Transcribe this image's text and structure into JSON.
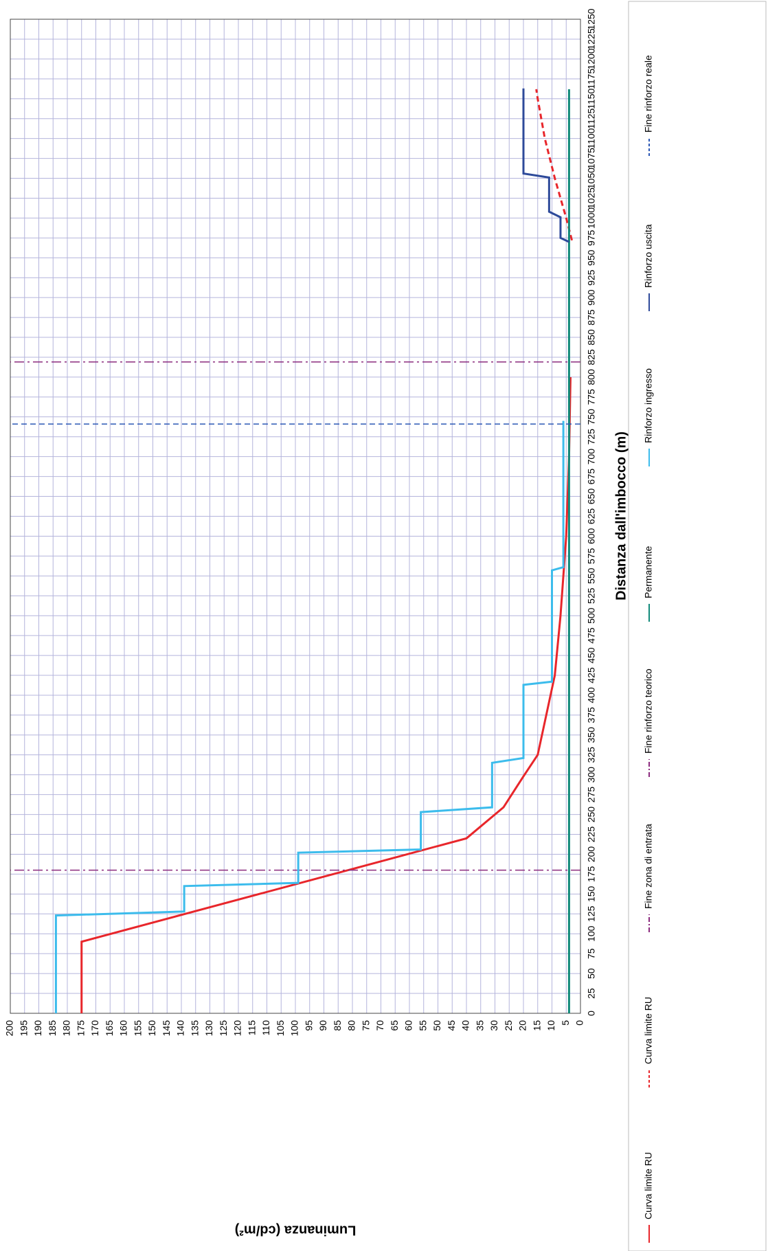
{
  "chart_data": {
    "type": "line",
    "xlabel": "Distanza dall'imbocco (m)",
    "ylabel": "Luminanza (cd/m²)",
    "xlim": [
      0,
      1250
    ],
    "xticks": [
      0,
      25,
      50,
      75,
      100,
      125,
      150,
      175,
      200,
      225,
      250,
      275,
      300,
      325,
      350,
      375,
      400,
      425,
      450,
      475,
      500,
      525,
      550,
      575,
      600,
      625,
      650,
      675,
      700,
      725,
      750,
      775,
      800,
      825,
      850,
      875,
      900,
      925,
      950,
      975,
      1000,
      1025,
      1050,
      1075,
      1100,
      1125,
      1150,
      1175,
      1200,
      1225,
      1250
    ],
    "ylim": [
      0,
      200
    ],
    "yticks": [
      0,
      5,
      10,
      15,
      20,
      25,
      30,
      35,
      40,
      45,
      50,
      55,
      60,
      65,
      70,
      75,
      80,
      85,
      90,
      95,
      100,
      105,
      110,
      115,
      120,
      125,
      130,
      135,
      140,
      145,
      150,
      155,
      160,
      165,
      170,
      175,
      180,
      185,
      190,
      195,
      200
    ],
    "grid": true,
    "legend": "bottom",
    "series": [
      {
        "name": "Curva limite RU",
        "color": "#e8262b",
        "line_style": "solid",
        "x": [
          0,
          90,
          220,
          259,
          298,
          325,
          375,
          425,
          500,
          600,
          700,
          800
        ],
        "values": [
          175,
          175,
          40,
          27,
          20,
          15,
          12,
          9,
          7,
          5,
          4,
          3.5
        ]
      },
      {
        "name": "Curva limite RU",
        "color": "#e8262b",
        "line_style": "dashed",
        "x": [
          972,
          1000,
          1050,
          1100,
          1150,
          1162
        ],
        "values": [
          3,
          5,
          9,
          12.5,
          15,
          15.5
        ]
      },
      {
        "name": "Fine zona di entrata",
        "color": "#8b2a7e",
        "line_style": "dashdot",
        "x": [
          180,
          180
        ],
        "values": [
          0,
          200
        ]
      },
      {
        "name": "Fine rinforzo teorico",
        "color": "#8b2a7e",
        "line_style": "dashdot",
        "x": [
          819,
          819
        ],
        "values": [
          0,
          200
        ]
      },
      {
        "name": "Permanente",
        "color": "#128a7a",
        "line_style": "solid",
        "x": [
          0,
          1162
        ],
        "values": [
          4,
          4
        ]
      },
      {
        "name": "Rinforzo ingresso",
        "color": "#3cbcec",
        "line_style": "solid",
        "x": [
          0,
          123,
          128,
          160,
          164,
          202,
          206,
          253,
          259,
          315,
          321,
          413,
          417,
          557,
          561,
          745
        ],
        "values": [
          184,
          184,
          139,
          139,
          99,
          99,
          56,
          56,
          31,
          31,
          20,
          20,
          10,
          10,
          6,
          6
        ]
      },
      {
        "name": "Rinforzo uscita",
        "color": "#2e4a9a",
        "line_style": "solid",
        "x": [
          970,
          975,
          1001,
          1008,
          1051,
          1056,
          1163
        ],
        "values": [
          4,
          7,
          7,
          11,
          11,
          20,
          20
        ]
      },
      {
        "name": "Fine rinforzo reale",
        "color": "#2b57b5",
        "line_style": "dashed",
        "x": [
          741,
          741
        ],
        "values": [
          0,
          200
        ]
      }
    ]
  }
}
